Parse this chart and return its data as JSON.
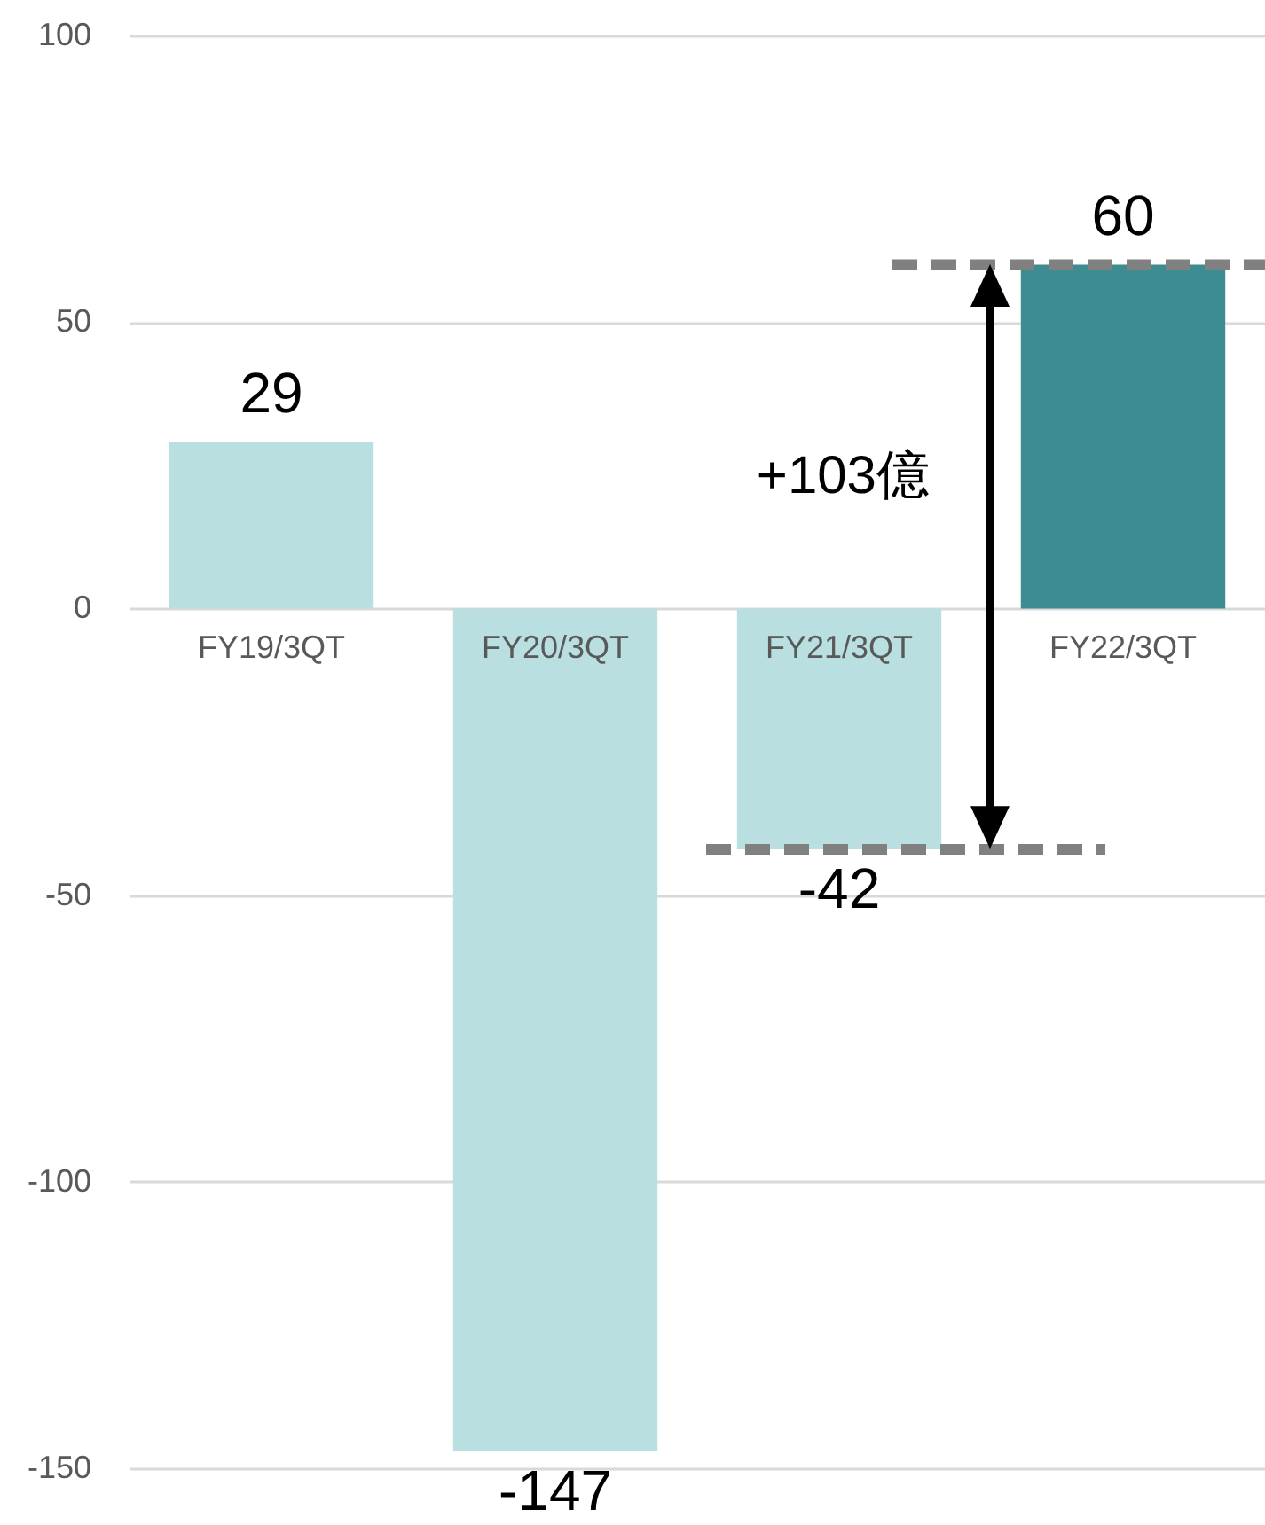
{
  "chart_data": {
    "type": "bar",
    "categories": [
      "FY19/3QT",
      "FY20/3QT",
      "FY21/3QT",
      "FY22/3QT"
    ],
    "values": [
      29,
      -147,
      -42,
      60
    ],
    "colors": [
      "#b9dfe1",
      "#b9dfe1",
      "#b9dfe1",
      "#3c8c91"
    ],
    "ylim": [
      -150,
      100
    ],
    "yticks": [
      -150,
      -100,
      -50,
      0,
      50,
      100
    ],
    "grid": "y",
    "data_labels": true,
    "ref_lines": [
      {
        "axis": "y",
        "value": 60,
        "color": "#808080",
        "line_style": "dashed"
      },
      {
        "axis": "y",
        "value": -42,
        "color": "#808080",
        "line_style": "dashed"
      }
    ],
    "annotations": [
      "+103億"
    ]
  }
}
